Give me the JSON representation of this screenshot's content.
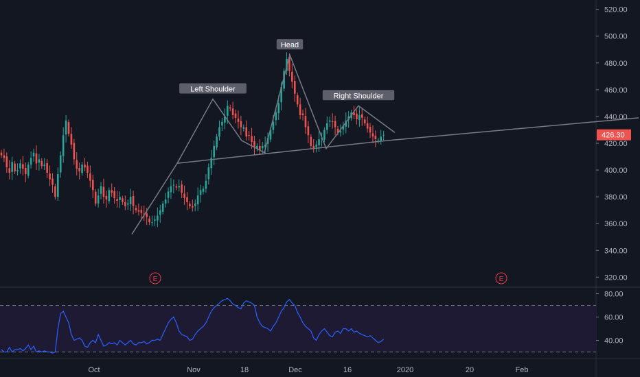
{
  "chart_data": [
    {
      "type": "candlestick",
      "panel": "price",
      "price_axis": {
        "ticks": [
          "520.00",
          "500.00",
          "480.00",
          "460.00",
          "440.00",
          "420.00",
          "400.00",
          "380.00",
          "360.00",
          "340.00",
          "320.00"
        ],
        "ylim": [
          313,
          527
        ]
      },
      "time_axis": {
        "labels": [
          "Oct",
          "Nov",
          "18",
          "Dec",
          "16",
          "2020",
          "20",
          "Feb"
        ]
      },
      "last_price": "426.30",
      "last_price_value": 426.3,
      "series": [
        {
          "name": "",
          "bar_count": 143,
          "close": [
            411,
            409,
            402,
            398,
            406,
            399,
            400,
            405,
            401,
            397,
            404,
            409,
            413,
            405,
            408,
            403,
            404,
            398,
            393,
            389,
            380,
            397,
            411,
            426,
            437,
            427,
            419,
            408,
            401,
            399,
            404,
            402,
            398,
            392,
            385,
            375,
            381,
            388,
            380,
            378,
            385,
            383,
            379,
            377,
            380,
            376,
            373,
            375,
            380,
            373,
            370,
            369,
            368,
            367,
            365,
            361,
            361,
            363,
            366,
            370,
            375,
            378,
            384,
            388,
            389,
            387,
            388,
            383,
            379,
            376,
            373,
            372,
            375,
            381,
            385,
            386,
            392,
            402,
            409,
            418,
            425,
            432,
            436,
            440,
            448,
            446,
            441,
            439,
            436,
            432,
            432,
            425,
            426,
            421,
            417,
            418,
            415,
            418,
            419,
            424,
            430,
            436,
            443,
            450,
            462,
            474,
            483,
            474,
            466,
            457,
            449,
            441,
            441,
            432,
            426,
            418,
            416,
            419,
            423,
            424,
            430,
            435,
            437,
            436,
            432,
            428,
            429,
            433,
            437,
            440,
            443,
            441,
            438,
            441,
            439,
            435,
            431,
            428,
            425,
            423,
            422,
            425,
            426.3
          ],
          "volatility": "daily high/low wicks approx 2-6 points"
        }
      ],
      "annotations": {
        "labels": [
          "Left Shoulder",
          "Head",
          "Right Shoulder"
        ],
        "neckline": [
          [
            258,
            405
          ],
          [
            563,
            422
          ]
        ],
        "neckline_extension": [
          [
            563,
            422
          ],
          [
            930,
            439
          ]
        ],
        "zigzag": [
          [
            192,
            352
          ],
          [
            258,
            405
          ],
          [
            310,
            453
          ],
          [
            352,
            422
          ],
          [
            385,
            413
          ],
          [
            422,
            486
          ],
          [
            475,
            416
          ],
          [
            522,
            448
          ],
          [
            575,
            428
          ]
        ],
        "earnings_markers": [
          "E",
          "E"
        ]
      },
      "colors": {
        "up": "#26a69a",
        "down": "#ef5350",
        "background": "#131722",
        "lines": "#787b86"
      }
    },
    {
      "type": "line",
      "panel": "rsi",
      "ticks": [
        "80.00",
        "60.00",
        "40.00"
      ],
      "ylim": [
        25,
        85
      ],
      "bands": {
        "upper": 70,
        "lower": 30
      },
      "series": [
        {
          "name": "",
          "values": [
            32,
            30,
            30,
            34,
            30,
            32,
            32,
            33,
            31,
            33,
            36,
            32,
            35,
            30,
            31,
            30,
            31,
            30,
            30,
            29,
            30,
            50,
            63,
            65,
            60,
            55,
            45,
            40,
            41,
            42,
            40,
            35,
            34,
            38,
            40,
            38,
            45,
            40,
            35,
            36,
            38,
            37,
            38,
            36,
            40,
            38,
            36,
            38,
            40,
            37,
            36,
            38,
            38,
            39,
            37,
            38,
            40,
            40,
            41,
            40,
            45,
            50,
            55,
            58,
            60,
            55,
            48,
            45,
            44,
            43,
            40,
            41,
            45,
            48,
            50,
            52,
            55,
            60,
            65,
            68,
            70,
            72,
            74,
            75,
            76,
            74,
            71,
            70,
            68,
            67,
            72,
            74,
            73,
            72,
            70,
            60,
            55,
            52,
            51,
            50,
            48,
            52,
            55,
            60,
            65,
            68,
            73,
            75,
            72,
            70,
            64,
            60,
            55,
            52,
            50,
            48,
            42,
            40,
            45,
            48,
            50,
            47,
            44,
            43,
            47,
            48,
            46,
            50,
            50,
            48,
            50,
            47,
            48,
            46,
            45,
            44,
            43,
            44,
            42,
            40,
            38,
            39,
            41
          ]
        }
      ],
      "colors": {
        "line": "#2962ff",
        "band_fill": "#1e1a33",
        "band_lines": "#787b86"
      }
    }
  ]
}
